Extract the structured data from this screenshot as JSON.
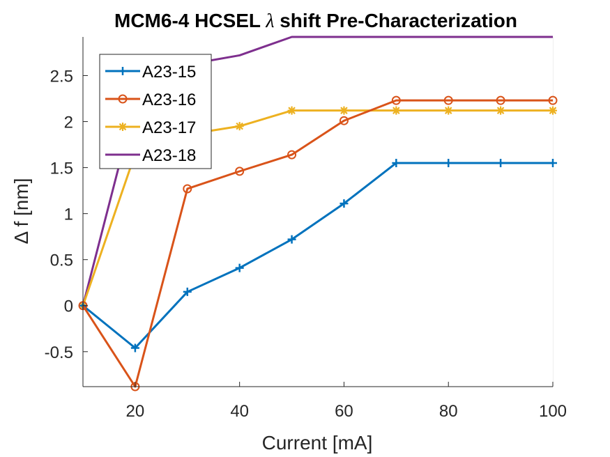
{
  "chart_data": {
    "type": "line",
    "title_prefix": "MCM6-4 HCSEL ",
    "title_symbol": "λ",
    "title_suffix": " shift Pre-Characterization",
    "xlabel": "Current [mA]",
    "ylabel": "Δ f [nm]",
    "xlim": [
      10,
      100
    ],
    "ylim": [
      -0.88,
      2.92
    ],
    "xticks": [
      20,
      40,
      60,
      80,
      100
    ],
    "yticks": [
      -0.5,
      0,
      0.5,
      1,
      1.5,
      2,
      2.5
    ],
    "ytick_labels": [
      "-0.5",
      "0",
      "0.5",
      "1",
      "1.5",
      "2",
      "2.5"
    ],
    "grid": true,
    "legend_position": "top-left",
    "x": [
      10,
      20,
      30,
      40,
      50,
      60,
      70,
      80,
      90,
      100
    ],
    "series": [
      {
        "name": "A23-15",
        "color": "#0072BD",
        "marker": "plus",
        "values": [
          0,
          -0.46,
          0.15,
          0.41,
          0.72,
          1.11,
          1.55,
          1.55,
          1.55,
          1.55
        ]
      },
      {
        "name": "A23-16",
        "color": "#D95319",
        "marker": "circle",
        "values": [
          0,
          -0.88,
          1.27,
          1.46,
          1.64,
          2.01,
          2.23,
          2.23,
          2.23,
          2.23
        ]
      },
      {
        "name": "A23-17",
        "color": "#EDB120",
        "marker": "star",
        "values": [
          0,
          1.65,
          1.86,
          1.95,
          2.12,
          2.12,
          2.12,
          2.12,
          2.12,
          2.12
        ]
      },
      {
        "name": "A23-18",
        "color": "#7E2F8E",
        "marker": "none",
        "values": [
          0,
          2.2,
          2.62,
          2.72,
          2.92,
          2.92,
          2.92,
          2.92,
          2.92,
          2.92
        ]
      }
    ]
  }
}
